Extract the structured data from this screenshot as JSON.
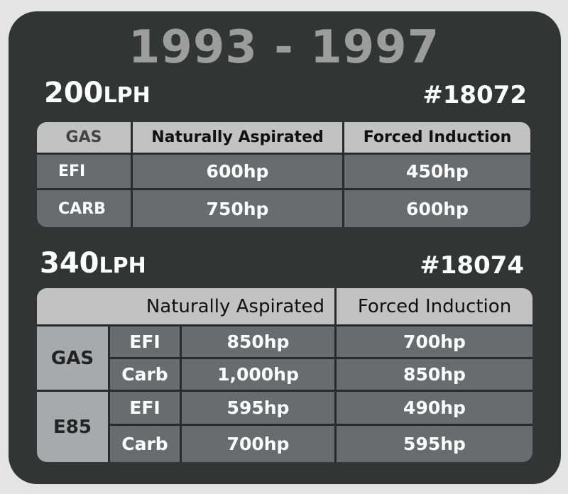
{
  "title": "1993 - 1997",
  "pump1": {
    "flow": "200",
    "unit": "LPH",
    "part": "#18072",
    "header": {
      "fuel": "GAS",
      "na": "Naturally Aspirated",
      "fi": "Forced Induction"
    },
    "rows": [
      {
        "label": "EFI",
        "na": "600hp",
        "fi": "450hp"
      },
      {
        "label": "CARB",
        "na": "750hp",
        "fi": "600hp"
      }
    ]
  },
  "pump2": {
    "flow": "340",
    "unit": "LPH",
    "part": "#18074",
    "header": {
      "na": "Naturally Aspirated",
      "fi": "Forced Induction"
    },
    "groups": [
      {
        "fuel": "GAS",
        "rows": [
          {
            "label": "EFI",
            "na": "850hp",
            "fi": "700hp"
          },
          {
            "label": "Carb",
            "na": "1,000hp",
            "fi": "850hp"
          }
        ]
      },
      {
        "fuel": "E85",
        "rows": [
          {
            "label": "EFI",
            "na": "595hp",
            "fi": "490hp"
          },
          {
            "label": "Carb",
            "na": "700hp",
            "fi": "595hp"
          }
        ]
      }
    ]
  }
}
